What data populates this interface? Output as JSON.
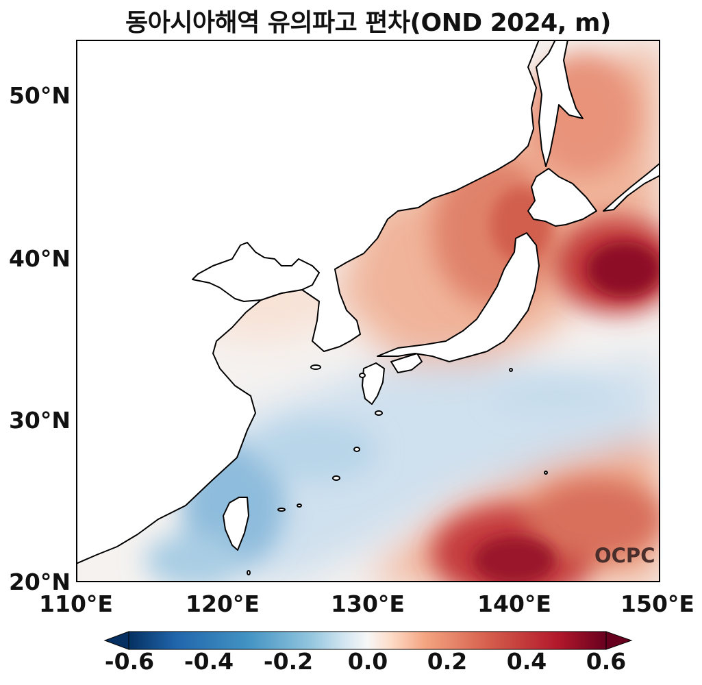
{
  "title": "동아시아해역 유의파고 편차(OND 2024, m)",
  "map": {
    "lon_range": [
      110,
      150
    ],
    "lat_range": [
      20,
      53.5
    ],
    "lat_ticks": [
      "50°N",
      "40°N",
      "30°N",
      "20°N"
    ],
    "lon_ticks": [
      "110°E",
      "120°E",
      "130°E",
      "140°E",
      "150°E"
    ]
  },
  "colorbar": {
    "cmap": "RdBu_r",
    "range": [
      -0.6,
      0.6
    ],
    "labels": [
      "-0.6",
      "-0.4",
      "-0.2",
      "0.0",
      "0.2",
      "0.4",
      "0.6"
    ],
    "extend": "both"
  },
  "logo": "OCPC",
  "colors": {
    "neg_extreme": "#053061",
    "neutral": "#f7f7f7",
    "pos_extreme": "#67001f"
  }
}
